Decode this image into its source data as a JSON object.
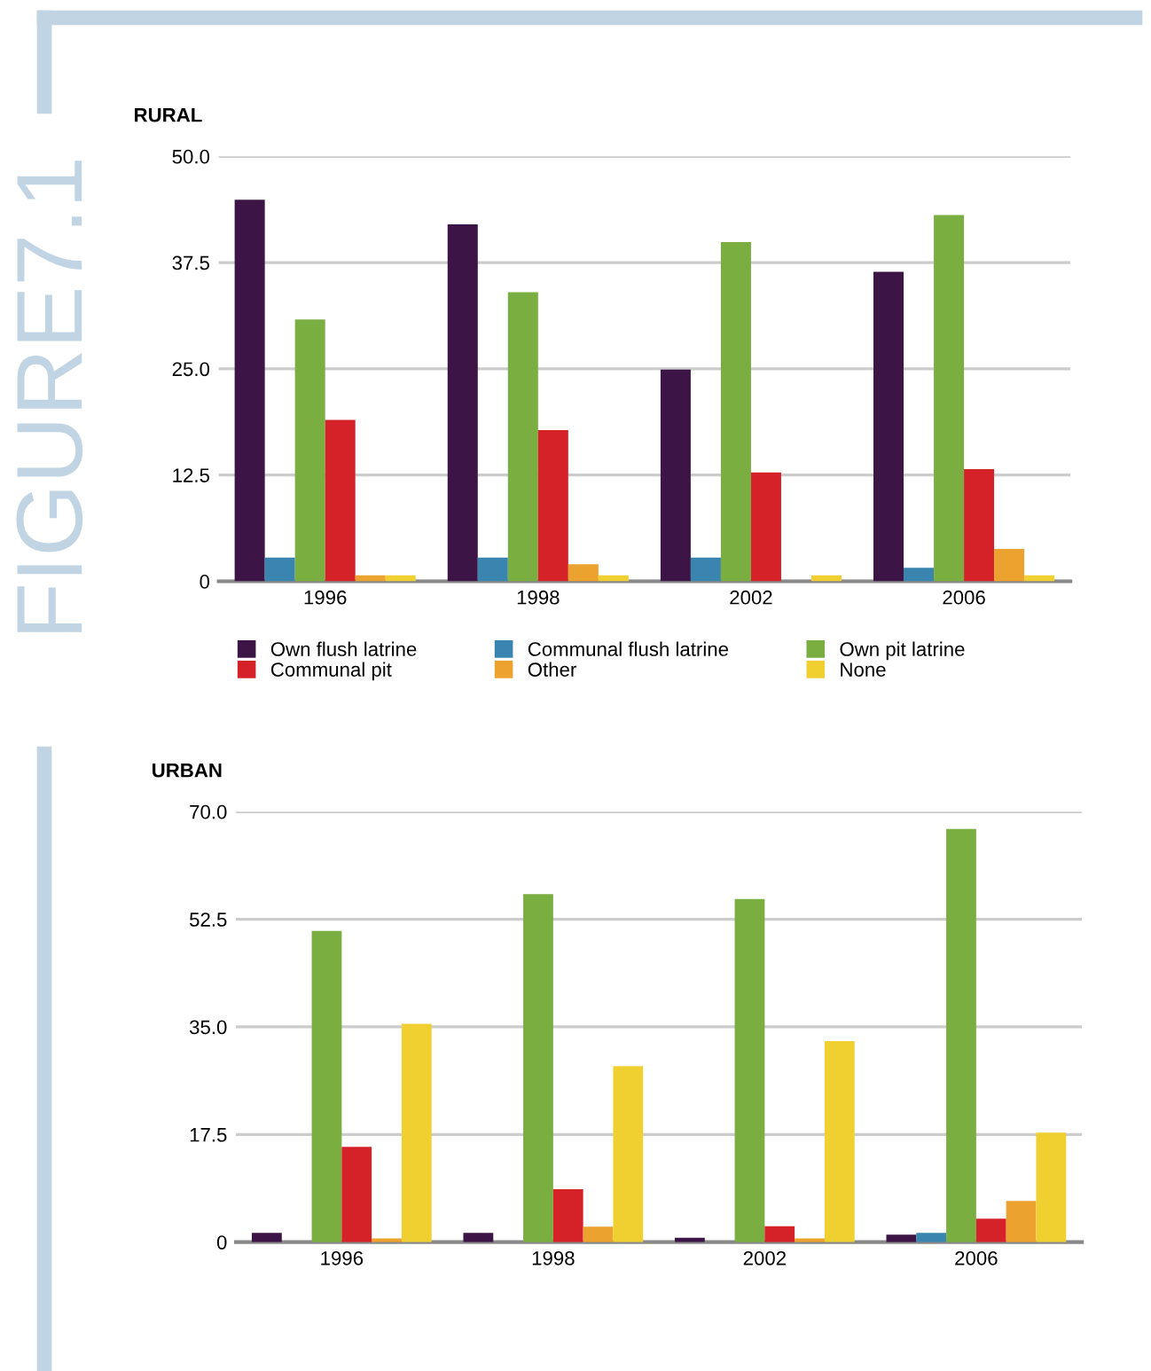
{
  "chart_data": [
    {
      "type": "bar",
      "title": "RURAL",
      "categories": [
        "1996",
        "1998",
        "2002",
        "2006"
      ],
      "series": [
        {
          "name": "Own flush latrine",
          "color": "#3d1446",
          "values": [
            44.9,
            42.0,
            24.9,
            36.4
          ]
        },
        {
          "name": "Communal flush latrine",
          "color": "#3a84b0",
          "values": [
            2.8,
            2.8,
            2.8,
            1.6
          ]
        },
        {
          "name": "Own pit latrine",
          "color": "#7aae41",
          "values": [
            30.8,
            34.0,
            39.9,
            43.1
          ]
        },
        {
          "name": "Communal pit",
          "color": "#d42228",
          "values": [
            19.0,
            17.8,
            12.8,
            13.2
          ]
        },
        {
          "name": "Other",
          "color": "#eca22e",
          "values": [
            0.7,
            2.0,
            0,
            3.8
          ]
        },
        {
          "name": "None",
          "color": "#f0d030",
          "values": [
            0.7,
            0.7,
            0.7,
            0.7
          ]
        }
      ],
      "ylim": [
        0,
        50
      ],
      "yticks": [
        0,
        {
          "value": 12.5,
          "label": "12.5"
        },
        {
          "value": 25,
          "label": "25.0"
        },
        {
          "value": 37.5,
          "label": "37.5"
        },
        {
          "value": 50,
          "label": "50.0"
        }
      ],
      "grid": "y",
      "legend": "bottom",
      "annotations": [
        "FIGURE7.1"
      ]
    },
    {
      "type": "bar",
      "title": "URBAN",
      "categories": [
        "1996",
        "1998",
        "2002",
        "2006"
      ],
      "series": [
        {
          "color": "#3d1446",
          "values": [
            1.5,
            1.5,
            0.7,
            1.2
          ]
        },
        {
          "color": "#3a84b0",
          "values": [
            0,
            0,
            0,
            1.5
          ]
        },
        {
          "color": "#7aae41",
          "values": [
            50.6,
            56.6,
            55.8,
            67.2
          ]
        },
        {
          "color": "#d42228",
          "values": [
            15.5,
            8.6,
            2.6,
            3.8
          ]
        },
        {
          "color": "#eca22e",
          "values": [
            0.6,
            2.5,
            0.6,
            6.7
          ]
        },
        {
          "color": "#f0d030",
          "values": [
            35.5,
            28.6,
            32.7,
            17.8
          ]
        }
      ],
      "ylim": [
        0,
        70
      ],
      "yticks": [
        0,
        {
          "value": 17.5,
          "label": "17.5"
        },
        {
          "value": 35,
          "label": "35.0"
        },
        {
          "value": 52.5,
          "label": "52.5"
        },
        {
          "value": 70,
          "label": "70.0"
        }
      ],
      "grid": "y",
      "legend": false
    }
  ]
}
